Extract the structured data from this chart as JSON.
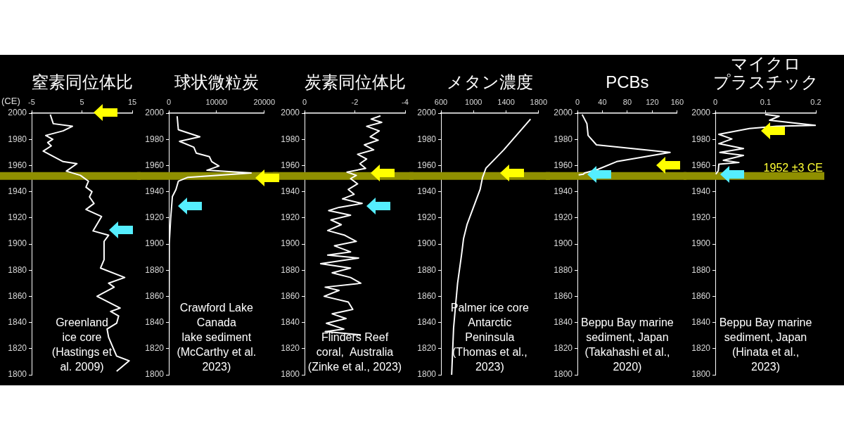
{
  "chart_data": [
    {
      "type": "line",
      "title": "窒素同位体比",
      "ylabel": "(CE)",
      "annotations": [
        "Greenland\nice core\n(Hastings et\nal. 2009)"
      ],
      "legend": false,
      "marker": "none",
      "xlim": [
        -5,
        15
      ],
      "xticks": [
        -5,
        5,
        15
      ],
      "ylim": [
        1800,
        2000
      ],
      "yticks": [
        1800,
        1820,
        1840,
        1860,
        1880,
        1900,
        1920,
        1940,
        1960,
        1980,
        2000
      ],
      "bands": [
        {
          "axis": "y",
          "from": 1949,
          "to": 1955,
          "label": null,
          "color": "#8f8f00"
        }
      ],
      "series": [
        {
          "color": "#ffffff",
          "x": [
            -1.3,
            -0.7,
            3.1,
            1.25,
            -2.2,
            -0.8,
            -1.8,
            -1.1,
            -2.7,
            1.25,
            4.0,
            1.9,
            4.7,
            6.3,
            5.8,
            7.0,
            6.5,
            7.4,
            5.8,
            8.9,
            7.2,
            10.3,
            9.4,
            9.4,
            8.7,
            13.5,
            10.3,
            11.4,
            8.0,
            12.6,
            10.7,
            12.3,
            11.9,
            10.0,
            10.3,
            11.9,
            14.4,
            11.9
          ],
          "values": [
            1999,
            1992,
            1990,
            1986.5,
            1983,
            1980,
            1977.6,
            1975,
            1971,
            1963,
            1961.4,
            1955.7,
            1952.5,
            1948,
            1943.5,
            1940,
            1936,
            1931,
            1926.4,
            1921,
            1910,
            1906.7,
            1902,
            1888,
            1881.6,
            1874.4,
            1870,
            1867,
            1860,
            1851,
            1848.4,
            1845,
            1839.4,
            1835,
            1828.7,
            1814.3,
            1810.7,
            1802.7
          ]
        }
      ]
    },
    {
      "type": "line",
      "title": "球状微粒炭",
      "annotations": [
        "Crawford Lake\nCanada\nlake sediment\n(McCarthy et al.\n2023)"
      ],
      "legend": false,
      "marker": "none",
      "xlim": [
        0,
        20000
      ],
      "xticks": [
        0,
        10000,
        20000
      ],
      "ylim": [
        1800,
        2000
      ],
      "yticks": [
        1800,
        1820,
        1840,
        1860,
        1880,
        1900,
        1920,
        1940,
        1960,
        1980,
        2000
      ],
      "bands": [
        {
          "axis": "y",
          "from": 1949,
          "to": 1955,
          "label": null,
          "color": "#8f8f00"
        }
      ],
      "series": [
        {
          "color": "#ffffff",
          "x": [
            1750,
            2000,
            6500,
            2250,
            5250,
            5750,
            8500,
            9000,
            10500,
            8000,
            17250,
            4000,
            2000,
            1500,
            750,
            400,
            100,
            0
          ],
          "values": [
            1997.7,
            1987.4,
            1982,
            1978.5,
            1974,
            1969.5,
            1966.8,
            1963,
            1959.6,
            1956.4,
            1954.3,
            1951,
            1948,
            1941.7,
            1936.3,
            1920,
            1900.4,
            1802.7
          ]
        }
      ]
    },
    {
      "type": "line",
      "title": "炭素同位体比",
      "annotations": [
        "Flinders Reef\ncoral,  Australia\n(Zinke et al., 2023)"
      ],
      "legend": false,
      "marker": "none",
      "xlim": [
        0,
        -4
      ],
      "xticks": [
        0,
        -2,
        -4
      ],
      "ylim": [
        1800,
        2000
      ],
      "yticks": [
        1800,
        1820,
        1840,
        1860,
        1880,
        1900,
        1920,
        1940,
        1960,
        1980,
        2000
      ],
      "bands": [
        {
          "axis": "y",
          "from": 1949,
          "to": 1955,
          "label": null,
          "color": "#8f8f00"
        }
      ],
      "series": [
        {
          "color": "#ffffff",
          "x": [
            -3.02,
            -2.65,
            -3.07,
            -2.47,
            -2.97,
            -2.61,
            -2.93,
            -2.38,
            -2.75,
            -2.11,
            -2.47,
            -2.2,
            -2.43,
            -1.69,
            -2.06,
            -1.83,
            -2.11,
            -1.74,
            -1.97,
            -1.51,
            -2.29,
            -1.37,
            -0.96,
            -1.83,
            -1.05,
            -1.46,
            -0.92,
            -1.6,
            -2.06,
            -1.19,
            -1.83,
            -0.92,
            -2.15,
            -0.64,
            -1.83,
            -1.1,
            -1.83,
            -2.24,
            -0.82,
            -1.37,
            -0.78,
            -1.74,
            -1.92,
            -1.1,
            -1.65,
            -0.87,
            -1.56,
            -0.82,
            -2.24
          ],
          "values": [
            1998,
            1995.5,
            1993,
            1990,
            1986.5,
            1982,
            1979.4,
            1975.8,
            1972,
            1968.6,
            1965,
            1961.4,
            1957.8,
            1955,
            1952.5,
            1950,
            1946,
            1941.7,
            1938,
            1934.5,
            1931,
            1928,
            1925.5,
            1922,
            1918.4,
            1914.8,
            1910.3,
            1906.7,
            1902,
            1898.6,
            1894,
            1891.5,
            1889.3,
            1885,
            1881.6,
            1878,
            1874.4,
            1870,
            1867,
            1864.5,
            1860,
            1855.6,
            1850,
            1846.6,
            1843,
            1839.4,
            1835,
            1833,
            1830.5
          ]
        }
      ]
    },
    {
      "type": "line",
      "title": "メタン濃度",
      "annotations": [
        "Palmer ice core\nAntarctic\nPeninsula\n(Thomas et al.,\n2023)"
      ],
      "legend": false,
      "marker": "none",
      "xlim": [
        600,
        1800
      ],
      "xticks": [
        600,
        1000,
        1400,
        1800
      ],
      "ylim": [
        1800,
        2000
      ],
      "yticks": [
        1800,
        1820,
        1840,
        1860,
        1880,
        1900,
        1920,
        1940,
        1960,
        1980,
        2000
      ],
      "bands": [
        {
          "axis": "y",
          "from": 1949,
          "to": 1955,
          "label": null,
          "color": "#8f8f00"
        }
      ],
      "series": [
        {
          "color": "#ffffff",
          "x": [
            1701,
            1372,
            1153,
            1110,
            1081,
            920,
            877,
            852,
            804,
            775,
            755,
            731
          ],
          "values": [
            1995.5,
            1972,
            1958,
            1950.7,
            1941.7,
            1914.8,
            1904,
            1891.5,
            1870,
            1850,
            1835.8,
            1800
          ]
        }
      ]
    },
    {
      "type": "line",
      "title": "PCBs",
      "annotations": [
        "Beppu Bay marine\nsediment, Japan\n(Takahashi et al.,\n2020)"
      ],
      "legend": false,
      "marker": "none",
      "xlim": [
        0,
        160
      ],
      "xticks": [
        0,
        40,
        80,
        120,
        160
      ],
      "ylim": [
        1800,
        2000
      ],
      "yticks": [
        1800,
        1820,
        1840,
        1860,
        1880,
        1900,
        1920,
        1940,
        1960,
        1980,
        2000
      ],
      "bands": [
        {
          "axis": "y",
          "from": 1949,
          "to": 1955,
          "label": null,
          "color": "#8f8f00"
        }
      ],
      "series": [
        {
          "color": "#ffffff",
          "x": [
            7.6,
            15.2,
            17.1,
            30.5,
            148.6,
            62.9,
            32.4,
            11.4,
            9.5,
            1.9
          ],
          "values": [
            1999,
            1992,
            1983,
            1975.8,
            1970,
            1963,
            1957,
            1954.3,
            1953.4,
            1952.8
          ]
        }
      ]
    },
    {
      "type": "line",
      "title": "マイクロプラスチック",
      "annotations": [
        "Beppu Bay marine\nsediment, Japan\n(Hinata et al.,\n2023)"
      ],
      "legend": false,
      "marker": "none",
      "xlim": [
        0,
        0.2
      ],
      "xticks": [
        0,
        0.1,
        0.2
      ],
      "ylim": [
        1800,
        2000
      ],
      "yticks": [
        1800,
        1820,
        1840,
        1860,
        1880,
        1900,
        1920,
        1940,
        1960,
        1980,
        2000
      ],
      "bands": [
        {
          "axis": "y",
          "from": 1949,
          "to": 1955,
          "label": "1952 ±3 CE",
          "color": "#8f8f00"
        }
      ],
      "series": [
        {
          "color": "#ffffff",
          "x": [
            0.099,
            0.127,
            0.108,
            0.199,
            0.122,
            0.068,
            0.031,
            0.007,
            0.033,
            0.007,
            0.056,
            0.009,
            0.056,
            0.016,
            0.047,
            0.007,
            0.006,
            0.001
          ],
          "values": [
            1999,
            1997.7,
            1994.6,
            1990.7,
            1990,
            1988.3,
            1985.6,
            1983.9,
            1980.3,
            1976.7,
            1973,
            1970,
            1967.7,
            1964,
            1962.3,
            1961,
            1956,
            1953.4
          ]
        }
      ]
    }
  ]
}
